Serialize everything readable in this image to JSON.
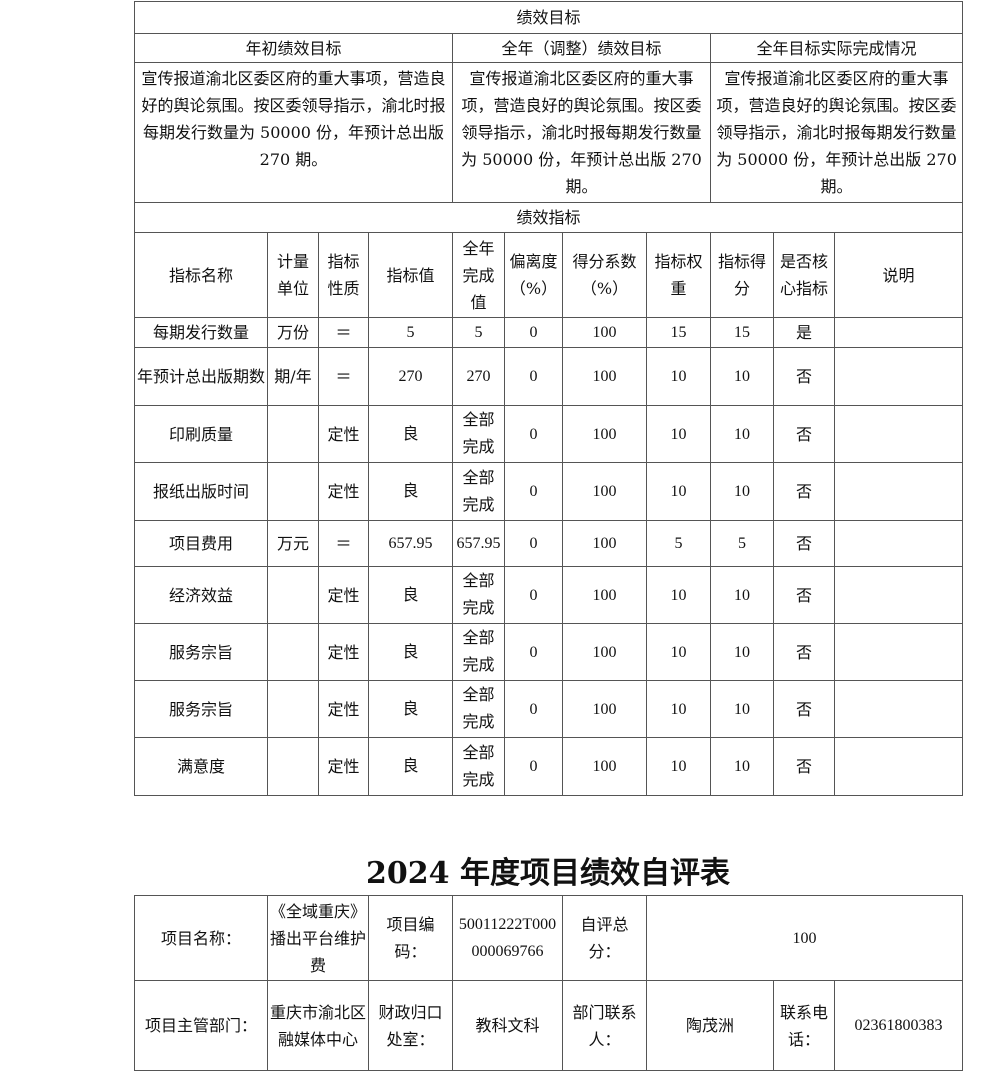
{
  "goals": {
    "section_title": "绩效目标",
    "headers": [
      "年初绩效目标",
      "全年（调整）绩效目标",
      "全年目标实际完成情况"
    ],
    "texts": [
      "宣传报道渝北区委区府的重大事项，营造良好的舆论氛围。按区委领导指示，渝北时报每期发行数量为 50000 份，年预计总出版 270 期。",
      "宣传报道渝北区委区府的重大事项，营造良好的舆论氛围。按区委领导指示，渝北时报每期发行数量为 50000 份，年预计总出版 270 期。",
      "宣传报道渝北区委区府的重大事项，营造良好的舆论氛围。按区委领导指示，渝北时报每期发行数量为 50000 份，年预计总出版 270 期。"
    ]
  },
  "indicators": {
    "section_title": "绩效指标",
    "headers": [
      "指标名称",
      "计量单位",
      "指标性质",
      "指标值",
      "全年完成值",
      "偏离度（%）",
      "得分系数（%）",
      "指标权重",
      "指标得分",
      "是否核心指标",
      "说明"
    ],
    "rows": [
      [
        "每期发行数量",
        "万份",
        "＝",
        "5",
        "5",
        "0",
        "100",
        "15",
        "15",
        "是",
        ""
      ],
      [
        "年预计总出版期数",
        "期/年",
        "＝",
        "270",
        "270",
        "0",
        "100",
        "10",
        "10",
        "否",
        ""
      ],
      [
        "印刷质量",
        "",
        "定性",
        "良",
        "全部完成",
        "0",
        "100",
        "10",
        "10",
        "否",
        ""
      ],
      [
        "报纸出版时间",
        "",
        "定性",
        "良",
        "全部完成",
        "0",
        "100",
        "10",
        "10",
        "否",
        ""
      ],
      [
        "项目费用",
        "万元",
        "＝",
        "657.95",
        "657.95",
        "0",
        "100",
        "5",
        "5",
        "否",
        ""
      ],
      [
        "经济效益",
        "",
        "定性",
        "良",
        "全部完成",
        "0",
        "100",
        "10",
        "10",
        "否",
        ""
      ],
      [
        "服务宗旨",
        "",
        "定性",
        "良",
        "全部完成",
        "0",
        "100",
        "10",
        "10",
        "否",
        ""
      ],
      [
        "服务宗旨",
        "",
        "定性",
        "良",
        "全部完成",
        "0",
        "100",
        "10",
        "10",
        "否",
        ""
      ],
      [
        "满意度",
        "",
        "定性",
        "良",
        "全部完成",
        "0",
        "100",
        "10",
        "10",
        "否",
        ""
      ]
    ]
  },
  "form_title": "2024 年度项目绩效自评表",
  "form": {
    "project_name_label": "项目名称：",
    "project_name": "《全域重庆》播出平台维护费",
    "project_code_label": "项目编码：",
    "project_code": "50011222T000000069766",
    "self_score_label": "自评总分：",
    "self_score": "100",
    "dept_label": "项目主管部门：",
    "dept": "重庆市渝北区融媒体中心",
    "finance_label": "财政归口处室：",
    "finance": "教科文科",
    "contact_label": "部门联系人：",
    "contact": "陶茂洲",
    "phone_label": "联系电话：",
    "phone": "02361800383"
  }
}
